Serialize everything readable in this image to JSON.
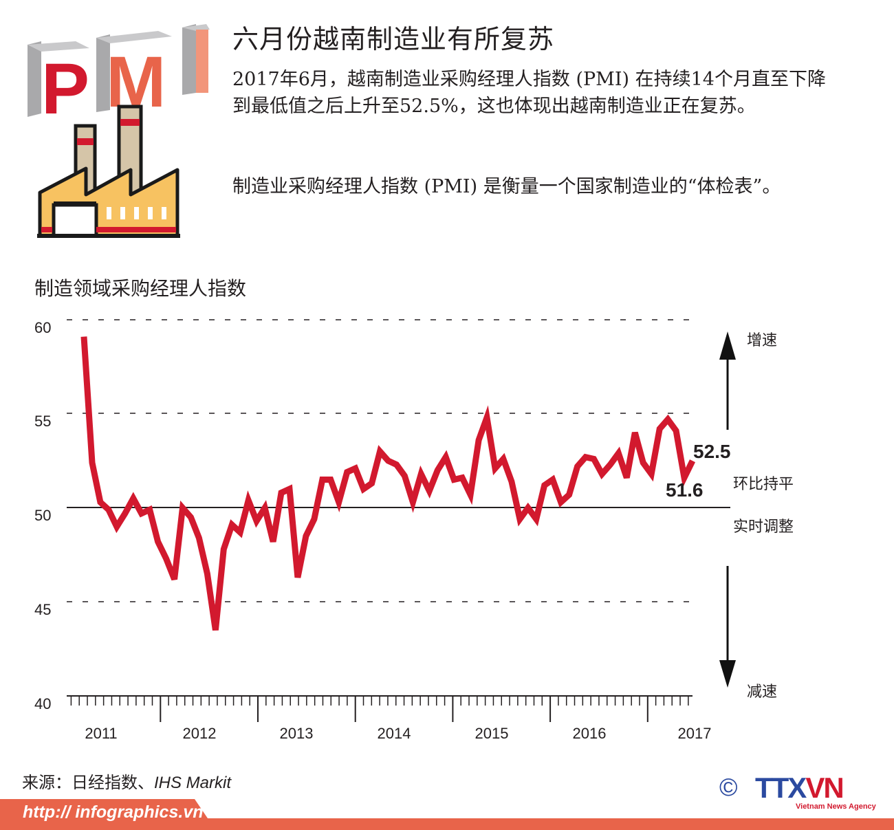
{
  "logo": {
    "text": "PMI",
    "icon": "factory-icon"
  },
  "header": {
    "title": "六月份越南制造业有所复苏",
    "paragraph1": "2017年6月，越南制造业采购经理人指数 (PMI) 在持续14个月直至下降到最低值之后上升至52.5%，这也体现出越南制造业正在复苏。",
    "paragraph2": "制造业采购经理人指数 (PMI) 是衡量一个国家制造业的“体检表”。"
  },
  "chart_data": {
    "type": "line",
    "title": "制造领域采购经理人指数",
    "xlabel": "",
    "ylabel": "",
    "ylim": [
      40,
      60
    ],
    "yticks": [
      40,
      45,
      50,
      55,
      60
    ],
    "x_tick_labels": [
      "2011",
      "2012",
      "2013",
      "2014",
      "2015",
      "2016",
      "2017"
    ],
    "x_range": [
      "2011-03",
      "2017-06"
    ],
    "grid": "dashed horizontal at 45, 55, 60; solid reference line at 50",
    "series": [
      {
        "name": "Vietnam Manufacturing PMI",
        "color": "#d2192e",
        "values": [
          59.1,
          52.4,
          50.3,
          49.9,
          49.0,
          49.7,
          50.5,
          49.7,
          49.9,
          48.2,
          47.3,
          46.2,
          50.0,
          49.5,
          48.4,
          46.5,
          43.5,
          47.8,
          49.1,
          48.7,
          50.4,
          49.3,
          50.0,
          48.2,
          50.8,
          51.0,
          46.3,
          48.5,
          49.4,
          51.5,
          51.5,
          50.3,
          51.9,
          52.1,
          51.0,
          51.3,
          53.0,
          52.5,
          52.3,
          51.7,
          50.3,
          51.8,
          50.9,
          52.0,
          52.7,
          51.5,
          51.6,
          50.7,
          53.6,
          54.8,
          52.1,
          52.6,
          51.4,
          49.4,
          50.0,
          49.4,
          51.2,
          51.5,
          50.3,
          50.7,
          52.2,
          52.7,
          52.6,
          51.8,
          52.3,
          52.9,
          51.6,
          54.0,
          52.4,
          51.8,
          54.2,
          54.7,
          54.1,
          51.6,
          52.5
        ]
      }
    ],
    "annotations": [
      {
        "text": "52.5",
        "label": "latest value (Jun 2017)"
      },
      {
        "text": "51.6",
        "label": "previous value (May 2017)"
      },
      {
        "text": "增速",
        "label": "arrow up"
      },
      {
        "text": "环比持平",
        "label": "above 50 line"
      },
      {
        "text": "实时调整",
        "label": "below 50 line"
      },
      {
        "text": "减速",
        "label": "arrow down"
      }
    ]
  },
  "chart": {
    "title": "制造领域采购经理人指数",
    "y_labels": [
      "60",
      "55",
      "50",
      "45",
      "40"
    ],
    "x_labels": [
      "2011",
      "2012",
      "2013",
      "2014",
      "2015",
      "2016",
      "2017"
    ],
    "value_last": "52.5",
    "value_prev": "51.6",
    "up_label": "增速",
    "flat_label": "环比持平",
    "adjust_label": "实时调整",
    "down_label": "减速"
  },
  "footer": {
    "source_label": "来源：日经指数、",
    "source_en": "IHS Markit",
    "url": "http:// infographics.vn",
    "copyright": "©",
    "brand_a": "TTX",
    "brand_b": "VN",
    "tagline": "Vietnam News Agency"
  },
  "colors": {
    "line": "#d2192e",
    "footer_bar": "#e8644a",
    "brand_blue": "#2b4aa0"
  }
}
